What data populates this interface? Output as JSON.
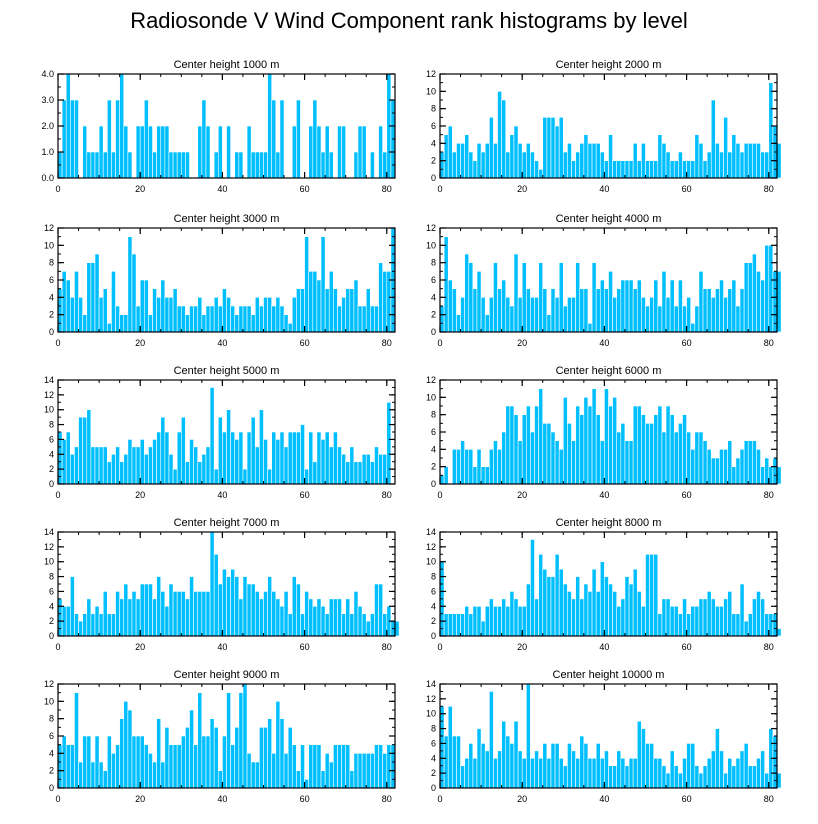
{
  "figure": {
    "title": "Radiosonde V Wind Component rank histograms by level",
    "bar_color": "#00bfff",
    "edge_color": "#ffffff"
  },
  "chart_data": [
    {
      "type": "bar",
      "title": "Center height 1000 m",
      "xlim": [
        0,
        82
      ],
      "ylim": [
        0,
        4
      ],
      "xticks": [
        0,
        20,
        40,
        60,
        80
      ],
      "yticks": [
        0,
        1,
        2,
        3,
        4
      ],
      "ytick_labels": [
        "0.0",
        "1.0",
        "2.0",
        "3.0",
        "4.0"
      ],
      "values": [
        1,
        3,
        4,
        3,
        3,
        0,
        2,
        1,
        1,
        1,
        2,
        1,
        3,
        1,
        3,
        4,
        2,
        1,
        0,
        2,
        2,
        3,
        2,
        1,
        2,
        2,
        2,
        1,
        1,
        1,
        1,
        1,
        0,
        0,
        2,
        3,
        2,
        0,
        1,
        2,
        0,
        2,
        0,
        1,
        1,
        0,
        2,
        1,
        1,
        1,
        1,
        4,
        3,
        1,
        3,
        0,
        0,
        2,
        3,
        0,
        0,
        2,
        3,
        2,
        1,
        2,
        1,
        0,
        2,
        2,
        0,
        0,
        1,
        2,
        2,
        0,
        1,
        0,
        2,
        1,
        4,
        3
      ]
    },
    {
      "type": "bar",
      "title": "Center height 2000 m",
      "xlim": [
        0,
        82
      ],
      "ylim": [
        0,
        12
      ],
      "xticks": [
        0,
        20,
        40,
        60,
        80
      ],
      "yticks": [
        0,
        2,
        4,
        6,
        8,
        10,
        12
      ],
      "ytick_labels": [
        "0",
        "2",
        "4",
        "6",
        "8",
        "10",
        "12"
      ],
      "values": [
        3,
        5,
        6,
        3,
        4,
        4,
        5,
        3,
        2,
        4,
        3,
        4,
        7,
        4,
        10,
        9,
        3,
        5,
        6,
        4,
        3,
        4,
        3,
        2,
        1,
        7,
        7,
        7,
        6,
        7,
        3,
        4,
        2,
        3,
        4,
        5,
        4,
        4,
        4,
        3,
        2,
        5,
        2,
        2,
        2,
        2,
        2,
        4,
        2,
        4,
        2,
        2,
        2,
        5,
        4,
        3,
        2,
        2,
        3,
        2,
        2,
        2,
        5,
        4,
        2,
        3,
        9,
        4,
        3,
        7,
        3,
        5,
        4,
        3,
        4,
        4,
        4,
        4,
        3,
        3,
        11,
        6,
        4
      ]
    },
    {
      "type": "bar",
      "title": "Center height 3000 m",
      "xlim": [
        0,
        82
      ],
      "ylim": [
        0,
        12
      ],
      "xticks": [
        0,
        20,
        40,
        60,
        80
      ],
      "yticks": [
        0,
        2,
        4,
        6,
        8,
        10,
        12
      ],
      "ytick_labels": [
        "0",
        "2",
        "4",
        "6",
        "8",
        "10",
        "12"
      ],
      "values": [
        5,
        7,
        6,
        4,
        7,
        4,
        2,
        8,
        8,
        9,
        4,
        5,
        1,
        7,
        3,
        2,
        2,
        11,
        9,
        3,
        6,
        6,
        2,
        5,
        4,
        6,
        4,
        4,
        5,
        3,
        3,
        2,
        3,
        3,
        4,
        2,
        3,
        3,
        4,
        3,
        5,
        4,
        3,
        2,
        3,
        3,
        3,
        2,
        4,
        3,
        4,
        4,
        3,
        4,
        3,
        2,
        1,
        4,
        5,
        5,
        11,
        7,
        7,
        6,
        11,
        5,
        7,
        5,
        3,
        4,
        5,
        5,
        6,
        3,
        3,
        5,
        3,
        3,
        8,
        7,
        7,
        12
      ]
    },
    {
      "type": "bar",
      "title": "Center height 4000 m",
      "xlim": [
        0,
        82
      ],
      "ylim": [
        0,
        12
      ],
      "xticks": [
        0,
        20,
        40,
        60,
        80
      ],
      "yticks": [
        0,
        2,
        4,
        6,
        8,
        10,
        12
      ],
      "ytick_labels": [
        "0",
        "2",
        "4",
        "6",
        "8",
        "10",
        "12"
      ],
      "values": [
        3,
        11,
        6,
        5,
        2,
        4,
        9,
        8,
        5,
        7,
        4,
        2,
        4,
        8,
        5,
        6,
        4,
        3,
        9,
        4,
        8,
        5,
        4,
        4,
        8,
        5,
        2,
        5,
        4,
        8,
        3,
        4,
        4,
        8,
        5,
        5,
        1,
        8,
        5,
        6,
        5,
        7,
        4,
        5,
        6,
        6,
        6,
        5,
        6,
        4,
        3,
        4,
        6,
        3,
        7,
        4,
        6,
        3,
        6,
        3,
        4,
        1,
        3,
        7,
        5,
        5,
        4,
        5,
        6,
        4,
        5,
        6,
        3,
        5,
        8,
        8,
        9,
        7,
        6,
        10,
        10,
        7,
        7
      ]
    },
    {
      "type": "bar",
      "title": "Center height 5000 m",
      "xlim": [
        0,
        82
      ],
      "ylim": [
        0,
        14
      ],
      "xticks": [
        0,
        20,
        40,
        60,
        80
      ],
      "yticks": [
        0,
        2,
        4,
        6,
        8,
        10,
        12,
        14
      ],
      "ytick_labels": [
        "0",
        "2",
        "4",
        "6",
        "8",
        "10",
        "12",
        "14"
      ],
      "values": [
        7,
        6,
        7,
        4,
        5,
        9,
        9,
        10,
        5,
        5,
        5,
        5,
        3,
        4,
        5,
        3,
        4,
        6,
        5,
        5,
        6,
        4,
        5,
        6,
        7,
        9,
        7,
        4,
        2,
        7,
        9,
        3,
        6,
        5,
        3,
        4,
        5,
        13,
        2,
        9,
        7,
        10,
        7,
        6,
        7,
        2,
        7,
        9,
        5,
        10,
        6,
        2,
        7,
        6,
        7,
        5,
        7,
        7,
        7,
        8,
        2,
        7,
        3,
        7,
        6,
        7,
        5,
        7,
        5,
        4,
        3,
        5,
        3,
        3,
        4,
        4,
        3,
        5,
        4,
        4,
        11
      ]
    },
    {
      "type": "bar",
      "title": "Center height 6000 m",
      "xlim": [
        0,
        82
      ],
      "ylim": [
        0,
        12
      ],
      "xticks": [
        0,
        20,
        40,
        60,
        80
      ],
      "yticks": [
        0,
        2,
        4,
        6,
        8,
        10,
        12
      ],
      "ytick_labels": [
        "0",
        "2",
        "4",
        "6",
        "8",
        "10",
        "12"
      ],
      "values": [
        1,
        2,
        0,
        4,
        4,
        5,
        4,
        4,
        2,
        4,
        2,
        2,
        4,
        5,
        4,
        6,
        9,
        9,
        8,
        5,
        8,
        9,
        6,
        9,
        11,
        7,
        7,
        6,
        5,
        4,
        10,
        7,
        5,
        9,
        8,
        10,
        9,
        11,
        8,
        5,
        11,
        9,
        10,
        6,
        7,
        5,
        5,
        9,
        9,
        8,
        7,
        7,
        8,
        9,
        6,
        9,
        8,
        6,
        7,
        8,
        6,
        4,
        6,
        6,
        5,
        4,
        3,
        3,
        4,
        4,
        5,
        2,
        3,
        4,
        5,
        5,
        5,
        4,
        2,
        3,
        2,
        3,
        2
      ]
    },
    {
      "type": "bar",
      "title": "Center height 7000 m",
      "xlim": [
        0,
        82
      ],
      "ylim": [
        0,
        14
      ],
      "xticks": [
        0,
        20,
        40,
        60,
        80
      ],
      "yticks": [
        0,
        2,
        4,
        6,
        8,
        10,
        12,
        14
      ],
      "ytick_labels": [
        "0",
        "2",
        "4",
        "6",
        "8",
        "10",
        "12",
        "14"
      ],
      "values": [
        5,
        4,
        4,
        8,
        3,
        2,
        3,
        5,
        3,
        4,
        3,
        6,
        3,
        3,
        6,
        5,
        7,
        5,
        6,
        5,
        7,
        7,
        7,
        5,
        8,
        6,
        4,
        7,
        6,
        6,
        6,
        5,
        8,
        6,
        6,
        6,
        6,
        14,
        11,
        7,
        9,
        8,
        9,
        8,
        5,
        8,
        7,
        7,
        6,
        5,
        6,
        8,
        6,
        5,
        4,
        6,
        3,
        8,
        7,
        3,
        6,
        5,
        4,
        5,
        4,
        3,
        5,
        5,
        5,
        3,
        5,
        3,
        6,
        4,
        3,
        2,
        3,
        7,
        7,
        3,
        4,
        2,
        2
      ]
    },
    {
      "type": "bar",
      "title": "Center height 8000 m",
      "xlim": [
        0,
        82
      ],
      "ylim": [
        0,
        14
      ],
      "xticks": [
        0,
        20,
        40,
        60,
        80
      ],
      "yticks": [
        0,
        2,
        4,
        6,
        8,
        10,
        12,
        14
      ],
      "ytick_labels": [
        "0",
        "2",
        "4",
        "6",
        "8",
        "10",
        "12",
        "14"
      ],
      "values": [
        10,
        3,
        3,
        3,
        3,
        3,
        4,
        3,
        4,
        4,
        2,
        4,
        5,
        4,
        4,
        5,
        4,
        6,
        5,
        4,
        4,
        7,
        13,
        5,
        11,
        9,
        8,
        8,
        11,
        9,
        7,
        6,
        5,
        8,
        5,
        7,
        6,
        9,
        6,
        10,
        8,
        7,
        6,
        4,
        5,
        8,
        7,
        9,
        6,
        4,
        11,
        11,
        11,
        3,
        5,
        5,
        4,
        4,
        3,
        5,
        3,
        4,
        4,
        5,
        5,
        6,
        5,
        4,
        4,
        5,
        6,
        3,
        3,
        7,
        2,
        3,
        5,
        6,
        5,
        3,
        3,
        3,
        1
      ]
    },
    {
      "type": "bar",
      "title": "Center height 9000 m",
      "xlim": [
        0,
        82
      ],
      "ylim": [
        0,
        12
      ],
      "xticks": [
        0,
        20,
        40,
        60,
        80
      ],
      "yticks": [
        0,
        2,
        4,
        6,
        8,
        10,
        12
      ],
      "ytick_labels": [
        "0",
        "2",
        "4",
        "6",
        "8",
        "10",
        "12"
      ],
      "values": [
        5,
        6,
        5,
        5,
        11,
        3,
        6,
        6,
        3,
        6,
        3,
        2,
        6,
        4,
        5,
        8,
        10,
        9,
        6,
        6,
        6,
        5,
        4,
        3,
        8,
        3,
        7,
        5,
        5,
        5,
        6,
        7,
        9,
        5,
        11,
        6,
        6,
        8,
        7,
        2,
        6,
        11,
        5,
        7,
        11,
        12,
        4,
        3,
        3,
        7,
        7,
        8,
        4,
        10,
        8,
        4,
        7,
        5,
        2,
        5,
        1,
        5,
        5,
        5,
        2,
        4,
        3,
        5,
        5,
        5,
        5,
        2,
        4,
        4,
        4,
        4,
        4,
        5,
        5,
        4,
        5,
        5
      ]
    },
    {
      "type": "bar",
      "title": "Center height 10000 m",
      "xlim": [
        0,
        82
      ],
      "ylim": [
        0,
        14
      ],
      "xticks": [
        0,
        20,
        40,
        60,
        80
      ],
      "yticks": [
        0,
        2,
        4,
        6,
        8,
        10,
        12,
        14
      ],
      "ytick_labels": [
        "0",
        "2",
        "4",
        "6",
        "8",
        "10",
        "12",
        "14"
      ],
      "values": [
        11,
        7,
        11,
        7,
        7,
        3,
        4,
        6,
        4,
        8,
        6,
        5,
        13,
        4,
        5,
        9,
        7,
        6,
        9,
        5,
        4,
        14,
        4,
        5,
        4,
        6,
        4,
        6,
        6,
        4,
        3,
        6,
        5,
        4,
        7,
        6,
        4,
        4,
        6,
        4,
        5,
        3,
        3,
        5,
        4,
        3,
        4,
        4,
        9,
        8,
        6,
        6,
        4,
        4,
        3,
        2,
        5,
        3,
        2,
        4,
        6,
        6,
        3,
        2,
        3,
        4,
        5,
        8,
        5,
        2,
        4,
        3,
        4,
        5,
        6,
        3,
        3,
        4,
        5,
        2,
        8,
        7,
        2
      ]
    }
  ]
}
